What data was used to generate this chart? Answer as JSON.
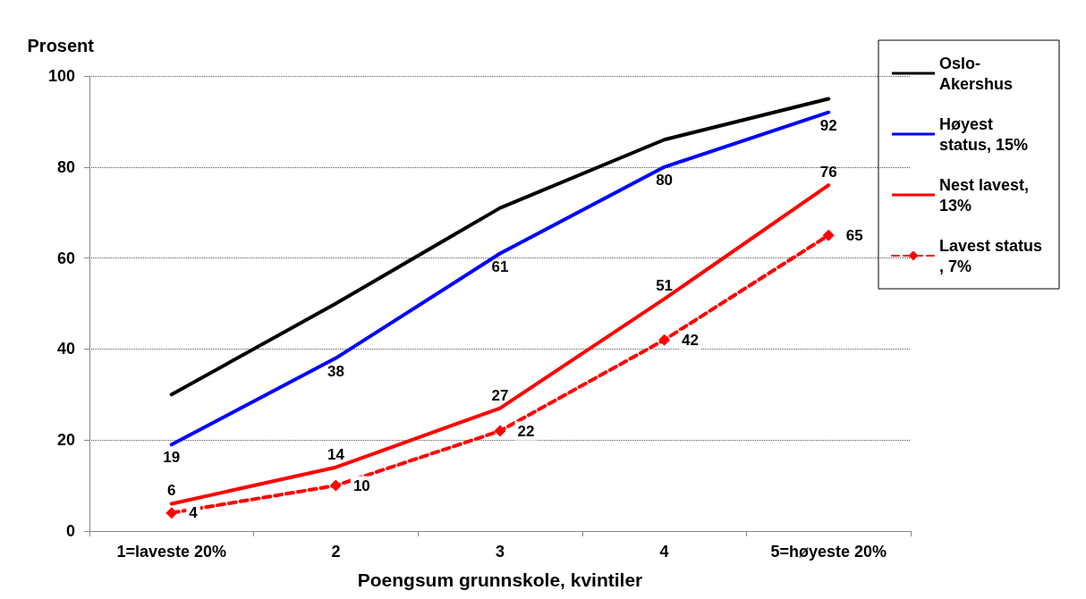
{
  "chart_data": {
    "type": "line",
    "ylabel": "Prosent",
    "xlabel": "Poengsum grunnskole, kvintiler",
    "categories": [
      "1=laveste 20%",
      "2",
      "3",
      "4",
      "5=høyeste 20%"
    ],
    "series": [
      {
        "name": "Oslo-Akershus",
        "color": "#000000",
        "values": [
          30,
          50,
          71,
          86,
          95
        ],
        "marker": "none",
        "line_style": "solid"
      },
      {
        "name": "Høyest status, 15%",
        "color": "#0000ff",
        "values": [
          19,
          38,
          61,
          80,
          92
        ],
        "value_labels": [
          "19",
          "38",
          "61",
          "80",
          "92"
        ],
        "marker": "none",
        "line_style": "solid"
      },
      {
        "name": "Nest lavest, 13%",
        "color": "#ff0000",
        "values": [
          6,
          14,
          27,
          51,
          76
        ],
        "value_labels": [
          "6",
          "14",
          "27",
          "51",
          "76"
        ],
        "marker": "none",
        "line_style": "solid"
      },
      {
        "name": "Lavest status, 7%",
        "color": "#ff0000",
        "values": [
          4,
          10,
          22,
          42,
          65
        ],
        "value_labels": [
          "4",
          "10",
          "22",
          "42",
          "65"
        ],
        "marker": "diamond",
        "line_style": "dashed"
      }
    ],
    "ylim": [
      0,
      100
    ],
    "yticks": [
      0,
      20,
      40,
      60,
      80,
      100
    ],
    "grid": "y",
    "legend": "right"
  }
}
